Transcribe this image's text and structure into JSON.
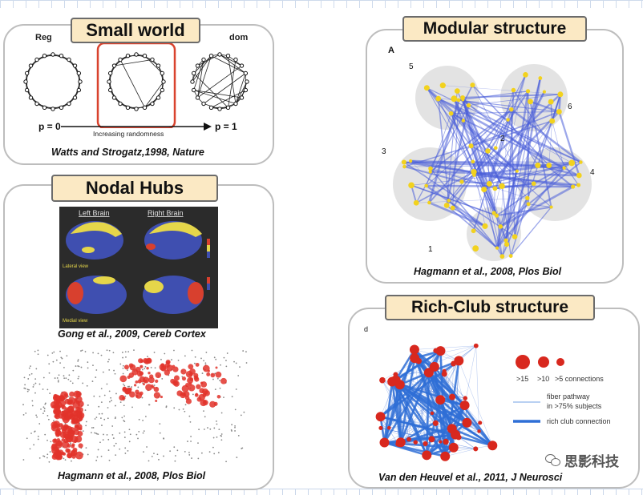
{
  "panels": {
    "small_world": {
      "title": "Small world",
      "left_label": "Reg",
      "right_label": "dom",
      "p0": "p = 0",
      "p1": "p = 1",
      "randomness": "Increasing randomness",
      "citation": "Watts and Strogatz,1998, Nature"
    },
    "nodal_hubs": {
      "title": "Nodal Hubs",
      "left_brain": "Left Brain",
      "right_brain": "Right Brain",
      "lateral": "Lateral view",
      "medial": "Medial view",
      "citation1": "Gong et al., 2009, Cereb Cortex",
      "citation2": "Hagmann et al., 2008, Plos Biol"
    },
    "modular": {
      "title": "Modular structure",
      "panel_letter": "A",
      "module_numbers": [
        "5",
        "6",
        "3",
        "4",
        "2",
        "1"
      ],
      "citation": "Hagmann et al., 2008, Plos Biol"
    },
    "rich_club": {
      "title": "Rich-Club structure",
      "panel_letter": "d",
      "legend_sizes": [
        ">15",
        ">10",
        ">5 connections"
      ],
      "legend_fiber": "fiber pathway",
      "legend_fiber2": "in >75% subjects",
      "legend_rich": "rich club connection",
      "citation": "Van den Heuvel et al., 2011, J Neurosci"
    }
  },
  "watermark": "思影科技",
  "colors": {
    "title_bg": "#fbe9c4",
    "highlight_red": "#d9432e",
    "network_blue": "#4a5fd8",
    "node_red": "#d8281e"
  }
}
